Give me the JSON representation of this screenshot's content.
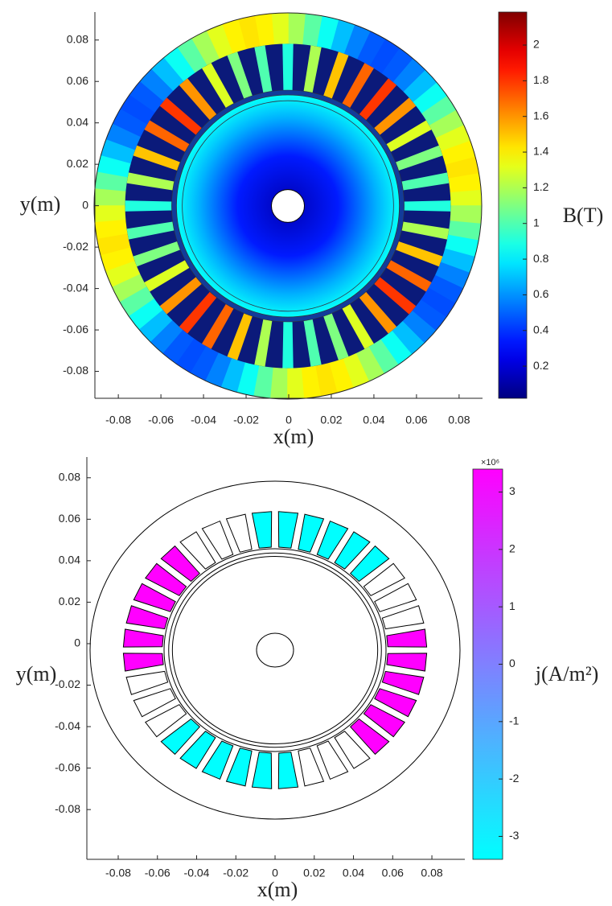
{
  "chart_data": [
    {
      "type": "flux-density-map",
      "xlabel": "x(m)",
      "ylabel": "y(m)",
      "xlim": [
        -0.091,
        0.091
      ],
      "ylim": [
        -0.093,
        0.0935
      ],
      "xticks": [
        -0.08,
        -0.06,
        -0.04,
        -0.02,
        0,
        0.02,
        0.04,
        0.06,
        0.08
      ],
      "yticks": [
        -0.08,
        -0.06,
        -0.04,
        -0.02,
        0,
        0.02,
        0.04,
        0.06,
        0.08
      ],
      "colorbar": {
        "label": "B(T)",
        "colormap": "jet",
        "clim": [
          0.02,
          2.185
        ],
        "ticks": [
          0.2,
          0.4,
          0.6,
          0.8,
          1,
          1.2,
          1.4,
          1.6,
          1.8,
          2
        ]
      },
      "tooth_values": [
        0.9,
        1.2,
        1.5,
        1.7,
        1.8,
        1.6,
        1.3,
        1.1,
        1.0,
        0.9,
        1.2,
        1.5,
        1.7,
        1.8,
        1.6,
        1.3,
        1.1,
        1.0,
        0.9,
        1.2,
        1.5,
        1.7,
        1.8,
        1.6,
        1.3,
        1.1,
        1.0,
        0.9,
        1.2,
        1.5,
        1.7,
        1.8,
        1.6,
        1.3,
        1.1,
        1.0
      ]
    },
    {
      "type": "current-density-map",
      "xlabel": "x(m)",
      "ylabel": "y(m)",
      "xlim": [
        -0.096,
        0.0968
      ],
      "ylim": [
        -0.104,
        0.09
      ],
      "xticks": [
        -0.08,
        -0.06,
        -0.04,
        -0.02,
        0,
        0.02,
        0.04,
        0.06,
        0.08
      ],
      "yticks": [
        -0.08,
        -0.06,
        -0.04,
        -0.02,
        0,
        0.02,
        0.04,
        0.06,
        0.08
      ],
      "colorbar": {
        "label": "j(A/m²)",
        "multiplier": "×10⁶",
        "colormap": "cool",
        "clim": [
          -3.4,
          3.4
        ],
        "ticks": [
          -3,
          -2,
          -1,
          0,
          1,
          2,
          3
        ]
      },
      "slot_values": [
        -3.4,
        -3.4,
        -3.4,
        -3.4,
        -3.4,
        -3.4,
        null,
        null,
        null,
        3.4,
        3.4,
        3.4,
        3.4,
        3.4,
        3.4,
        null,
        null,
        null,
        -3.4,
        -3.4,
        -3.4,
        -3.4,
        -3.4,
        -3.4,
        null,
        null,
        null,
        3.4,
        3.4,
        3.4,
        3.4,
        3.4,
        3.4,
        null,
        null,
        null
      ]
    }
  ]
}
